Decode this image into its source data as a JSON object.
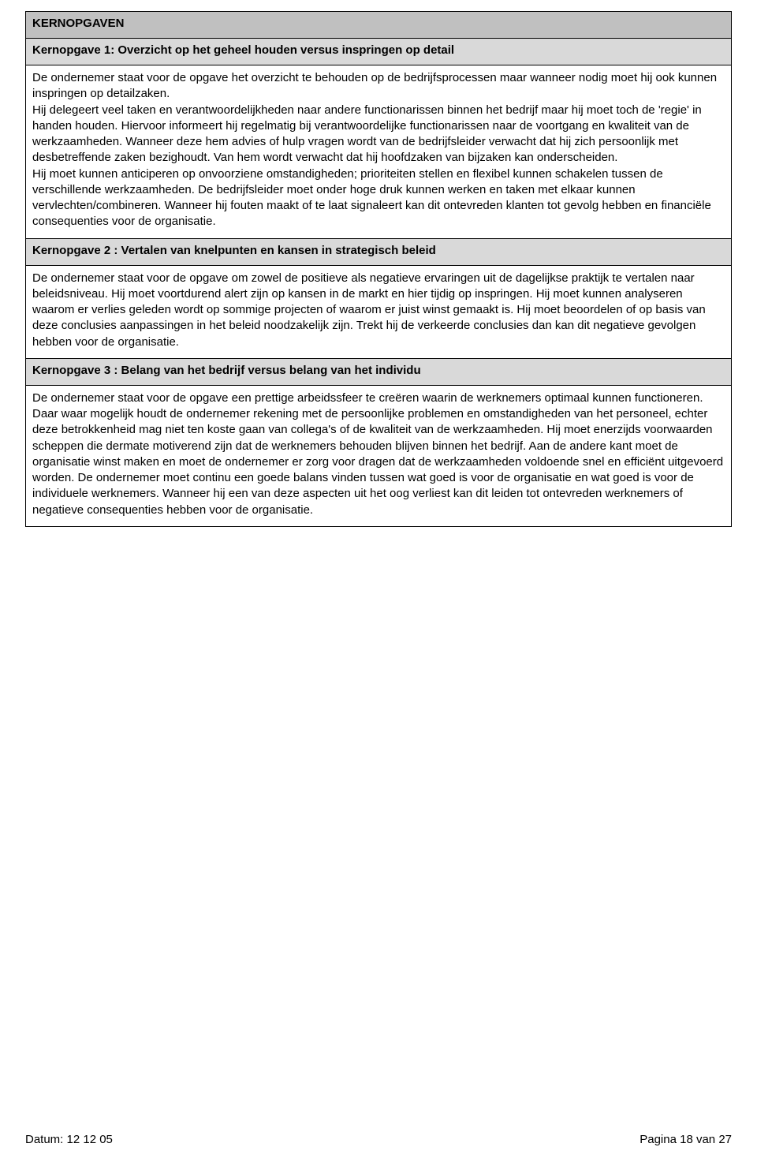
{
  "section": {
    "title": "KERNOPGAVEN",
    "items": [
      {
        "heading": "Kernopgave  1: Overzicht op het geheel houden versus inspringen op detail",
        "body": "De ondernemer staat voor de opgave het overzicht te behouden op de bedrijfsprocessen maar wanneer nodig moet hij ook kunnen inspringen op detailzaken.\nHij delegeert veel taken en verantwoordelijkheden naar andere functionarissen binnen het bedrijf maar hij moet toch de 'regie' in handen houden. Hiervoor informeert hij regelmatig bij verantwoordelijke functionarissen naar de voortgang en kwaliteit van de werkzaamheden. Wanneer deze hem advies of hulp vragen wordt van de bedrijfsleider verwacht dat hij zich persoonlijk met desbetreffende zaken bezighoudt. Van hem wordt verwacht dat hij hoofdzaken van bijzaken kan onderscheiden.\nHij moet kunnen anticiperen op onvoorziene omstandigheden; prioriteiten stellen en flexibel kunnen schakelen tussen de verschillende werkzaamheden. De bedrijfsleider moet onder hoge druk kunnen werken en taken met elkaar kunnen vervlechten/combineren. Wanneer hij fouten maakt of te laat signaleert kan dit ontevreden klanten tot gevolg hebben en financiële consequenties voor de organisatie."
      },
      {
        "heading": "Kernopgave 2  : Vertalen van knelpunten en kansen in strategisch beleid",
        "body": "De ondernemer staat voor de opgave om zowel de positieve als negatieve ervaringen uit de dagelijkse praktijk te vertalen naar beleidsniveau. Hij moet voortdurend alert zijn op kansen in de markt en hier tijdig op inspringen. Hij moet kunnen analyseren waarom er verlies geleden wordt op sommige projecten of waarom er juist winst gemaakt is. Hij moet beoordelen of op basis van deze conclusies aanpassingen in het beleid noodzakelijk zijn. Trekt hij de verkeerde conclusies dan kan dit negatieve gevolgen hebben voor de organisatie."
      },
      {
        "heading": "Kernopgave 3  : Belang van het bedrijf versus belang van het individu",
        "body": "De ondernemer staat voor de opgave een prettige arbeidssfeer te creëren waarin de werknemers optimaal kunnen functioneren. Daar waar mogelijk houdt de ondernemer rekening met de persoonlijke problemen en omstandigheden van het personeel, echter deze betrokkenheid mag niet ten koste gaan van collega's of de kwaliteit van de werkzaamheden. Hij moet enerzijds voorwaarden scheppen die dermate motiverend zijn dat de werknemers behouden blijven binnen het bedrijf. Aan de andere kant moet de organisatie winst maken en moet de ondernemer er zorg voor dragen dat de werkzaamheden voldoende snel en efficiënt uitgevoerd worden. De ondernemer moet continu een goede balans vinden tussen wat goed is voor de organisatie en wat goed is voor de individuele werknemers. Wanneer hij een van deze aspecten uit het oog verliest kan dit leiden tot ontevreden werknemers of negatieve consequenties hebben voor de organisatie."
      }
    ]
  },
  "footer": {
    "left": "Datum: 12 12 05",
    "right": "Pagina 18 van 27"
  },
  "colors": {
    "header_bg": "#c0c0c0",
    "subheader_bg": "#d9d9d9",
    "border": "#000000",
    "text": "#000000",
    "page_bg": "#ffffff"
  }
}
